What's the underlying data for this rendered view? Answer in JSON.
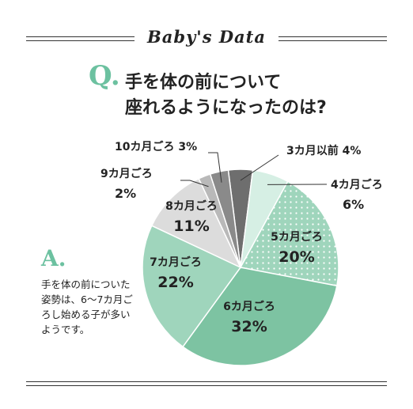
{
  "banner": "Baby's Data",
  "question": {
    "mark": "Q.",
    "line1": "手を体の前について",
    "line2": "座れるようになったのは?"
  },
  "answer": {
    "mark": "A.",
    "text": "手を体の前についた姿勢は、6〜7カ月ごろし始める子が多いようです。"
  },
  "colors": {
    "accent": "#6cc1a0",
    "dark_green": "#7dc3a2",
    "mid_green": "#9fd5bc",
    "light_green": "#d6efe4",
    "gray_light": "#dcdcdc",
    "gray_mid": "#b9b9b9",
    "gray_dark": "#8a8a8a",
    "gray_darker": "#6e6e6e"
  },
  "chart_data": {
    "type": "pie",
    "slices": [
      {
        "label": "3カ月以前",
        "value": 4,
        "value_text": "4%"
      },
      {
        "label": "4カ月ごろ",
        "value": 6,
        "value_text": "6%"
      },
      {
        "label": "5カ月ごろ",
        "value": 20,
        "value_text": "20%"
      },
      {
        "label": "6カ月ごろ",
        "value": 32,
        "value_text": "32%"
      },
      {
        "label": "7カ月ごろ",
        "value": 22,
        "value_text": "22%"
      },
      {
        "label": "8カ月ごろ",
        "value": 11,
        "value_text": "11%"
      },
      {
        "label": "9カ月ごろ",
        "value": 2,
        "value_text": "2%"
      },
      {
        "label": "10カ月ごろ",
        "value": 3,
        "value_text": "3%"
      }
    ]
  }
}
